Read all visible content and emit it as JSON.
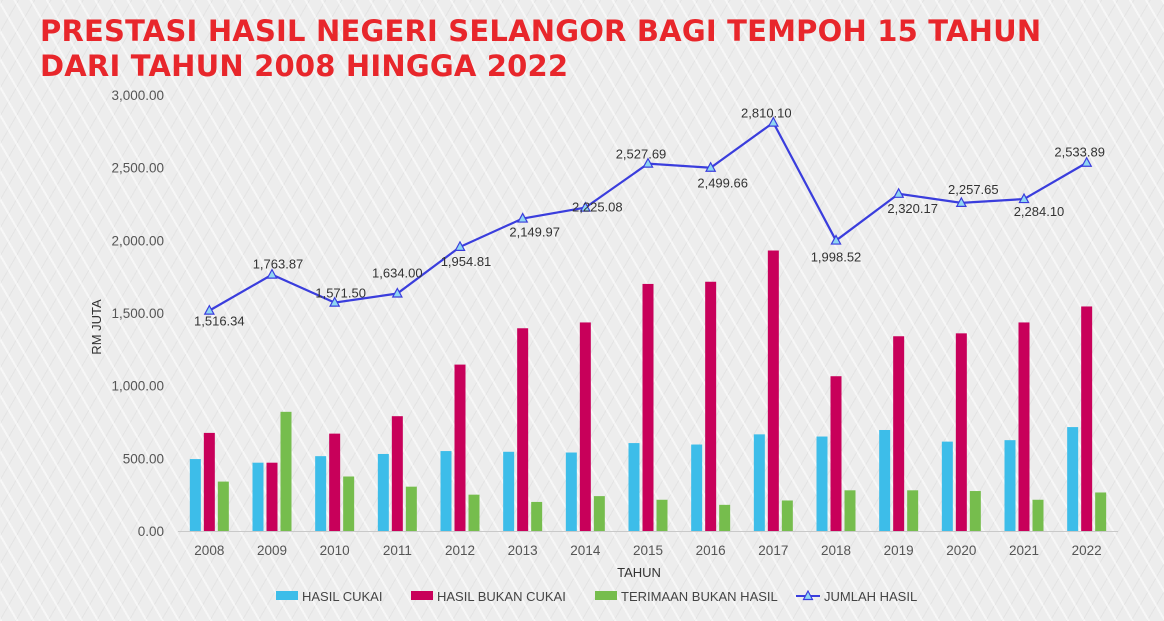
{
  "title_lines": [
    "PRESTASI HASIL NEGERI SELANGOR BAGI TEMPOH 15 TAHUN",
    "DARI TAHUN 2008 HINGGA 2022"
  ],
  "chart_data": {
    "type": "bar",
    "title": "PRESTASI HASIL NEGERI SELANGOR BAGI TEMPOH 15 TAHUN DARI TAHUN 2008 HINGGA 2022",
    "xlabel": "TAHUN",
    "ylabel": "RM JUTA",
    "ylim": [
      0,
      3000
    ],
    "yticks": [
      "0.00",
      "500.00",
      "1,000.00",
      "1,500.00",
      "2,000.00",
      "2,500.00",
      "3,000.00"
    ],
    "categories": [
      "2008",
      "2009",
      "2010",
      "2011",
      "2012",
      "2013",
      "2014",
      "2015",
      "2016",
      "2017",
      "2018",
      "2019",
      "2020",
      "2021",
      "2022"
    ],
    "grid": false,
    "legend_position": "bottom",
    "series": [
      {
        "name": "HASIL CUKAI",
        "type": "bar",
        "color": "#3dbde9",
        "values": [
          495,
          470,
          515,
          530,
          550,
          545,
          540,
          605,
          595,
          665,
          650,
          695,
          615,
          625,
          715
        ]
      },
      {
        "name": "HASIL BUKAN CUKAI",
        "type": "bar",
        "color": "#c8005a",
        "values": [
          675,
          470,
          670,
          790,
          1145,
          1395,
          1435,
          1700,
          1715,
          1930,
          1065,
          1340,
          1360,
          1435,
          1545
        ]
      },
      {
        "name": "TERIMAAN BUKAN HASIL",
        "type": "bar",
        "color": "#76bd4d",
        "values": [
          340,
          820,
          375,
          305,
          250,
          200,
          240,
          215,
          180,
          210,
          280,
          280,
          275,
          215,
          265
        ]
      },
      {
        "name": "JUMLAH HASIL",
        "type": "line",
        "color": "#3a3ddd",
        "values": [
          1516.34,
          1763.87,
          1571.5,
          1634.0,
          1954.81,
          2149.97,
          2225.08,
          2527.69,
          2499.66,
          2810.1,
          1998.52,
          2320.17,
          2257.65,
          2284.1,
          2533.89
        ],
        "labels": [
          "1,516.34",
          "1,763.87",
          "1,571.50",
          "1,634.00",
          "1,954.81",
          "2,149.97",
          "2,225.08",
          "2,527.69",
          "2,499.66",
          "2,810.10",
          "1,998.52",
          "2,320.17",
          "2,257.65",
          "2,284.10",
          "2,533.89"
        ]
      }
    ]
  }
}
